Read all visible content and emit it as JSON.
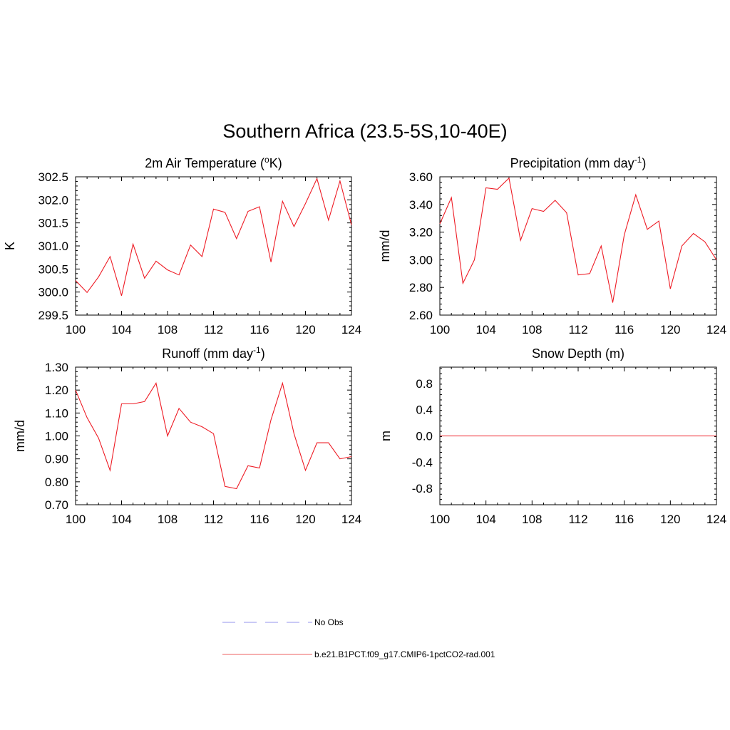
{
  "figure_title": "Southern Africa (23.5-5S,10-40E)",
  "chart_data": [
    {
      "type": "line",
      "title_main": "2m Air Temperature (",
      "title_sup_pre": "o",
      "title_after": "K)",
      "ylabel": "K",
      "xlim": [
        100,
        124
      ],
      "ylim": [
        299.5,
        302.5
      ],
      "x_ticks": [
        100,
        104,
        108,
        112,
        116,
        120,
        124
      ],
      "y_ticks": [
        "299.5",
        "300.0",
        "300.5",
        "301.0",
        "301.5",
        "302.0",
        "302.5"
      ],
      "y_tick_values": [
        299.5,
        300.0,
        300.5,
        301.0,
        301.5,
        302.0,
        302.5
      ],
      "x": [
        100,
        101,
        102,
        103,
        104,
        105,
        106,
        107,
        108,
        109,
        110,
        111,
        112,
        113,
        114,
        115,
        116,
        117,
        118,
        119,
        120,
        121,
        122,
        123,
        124
      ],
      "series": [
        {
          "color": "#ee1c25",
          "values": [
            300.25,
            299.99,
            300.33,
            300.77,
            299.92,
            301.04,
            300.3,
            300.67,
            300.48,
            300.37,
            301.02,
            300.77,
            301.8,
            301.73,
            301.16,
            301.75,
            301.85,
            300.65,
            301.97,
            301.42,
            301.92,
            302.46,
            301.56,
            302.41,
            301.46
          ]
        }
      ]
    },
    {
      "type": "line",
      "title_main": "Precipitation (mm day",
      "title_sup_post": "-1",
      "title_after": ")",
      "ylabel": "mm/d",
      "xlim": [
        100,
        124
      ],
      "ylim": [
        2.6,
        3.6
      ],
      "x_ticks": [
        100,
        104,
        108,
        112,
        116,
        120,
        124
      ],
      "y_ticks": [
        "2.60",
        "2.80",
        "3.00",
        "3.20",
        "3.40",
        "3.60"
      ],
      "y_tick_values": [
        2.6,
        2.8,
        3.0,
        3.2,
        3.4,
        3.6
      ],
      "x": [
        100,
        101,
        102,
        103,
        104,
        105,
        106,
        107,
        108,
        109,
        110,
        111,
        112,
        113,
        114,
        115,
        116,
        117,
        118,
        119,
        120,
        121,
        122,
        123,
        124
      ],
      "series": [
        {
          "color": "#ee1c25",
          "values": [
            3.26,
            3.45,
            2.83,
            3.0,
            3.52,
            3.51,
            3.59,
            3.14,
            3.37,
            3.35,
            3.43,
            3.34,
            2.89,
            2.9,
            3.1,
            2.69,
            3.18,
            3.47,
            3.22,
            3.28,
            2.79,
            3.1,
            3.19,
            3.13,
            3.0
          ]
        }
      ]
    },
    {
      "type": "line",
      "title_main": "Runoff (mm day",
      "title_sup_post": "-1",
      "title_after": ")",
      "ylabel": "mm/d",
      "xlim": [
        100,
        124
      ],
      "ylim": [
        0.7,
        1.3
      ],
      "x_ticks": [
        100,
        104,
        108,
        112,
        116,
        120,
        124
      ],
      "y_ticks": [
        "0.70",
        "0.80",
        "0.90",
        "1.00",
        "1.10",
        "1.20",
        "1.30"
      ],
      "y_tick_values": [
        0.7,
        0.8,
        0.9,
        1.0,
        1.1,
        1.2,
        1.3
      ],
      "x": [
        100,
        101,
        102,
        103,
        104,
        105,
        106,
        107,
        108,
        109,
        110,
        111,
        112,
        113,
        114,
        115,
        116,
        117,
        118,
        119,
        120,
        121,
        122,
        123,
        124
      ],
      "series": [
        {
          "color": "#ee1c25",
          "values": [
            1.2,
            1.08,
            0.99,
            0.85,
            1.14,
            1.14,
            1.15,
            1.23,
            1.0,
            1.12,
            1.06,
            1.04,
            1.01,
            0.78,
            0.77,
            0.87,
            0.86,
            1.07,
            1.23,
            1.01,
            0.85,
            0.97,
            0.97,
            0.9,
            0.91
          ]
        }
      ]
    },
    {
      "type": "line",
      "title_main": "Snow Depth (m)",
      "ylabel": "m",
      "xlim": [
        100,
        124
      ],
      "ylim": [
        -1.05,
        1.05
      ],
      "x_ticks": [
        100,
        104,
        108,
        112,
        116,
        120,
        124
      ],
      "y_ticks": [
        "-0.8",
        "-0.4",
        "0.0",
        "0.4",
        "0.8"
      ],
      "y_tick_values": [
        -0.8,
        -0.4,
        0.0,
        0.4,
        0.8
      ],
      "x": [
        100,
        101,
        102,
        103,
        104,
        105,
        106,
        107,
        108,
        109,
        110,
        111,
        112,
        113,
        114,
        115,
        116,
        117,
        118,
        119,
        120,
        121,
        122,
        123,
        124
      ],
      "series": [
        {
          "color": "#ee1c25",
          "values": [
            0,
            0,
            0,
            0,
            0,
            0,
            0,
            0,
            0,
            0,
            0,
            0,
            0,
            0,
            0,
            0,
            0,
            0,
            0,
            0,
            0,
            0,
            0,
            0,
            0
          ]
        }
      ]
    }
  ],
  "legend": {
    "placement": "bottom-center",
    "entries": [
      {
        "label": "No Obs",
        "color": "#aaaaf0",
        "style": "dashed"
      },
      {
        "label": "b.e21.B1PCT.f09_g17.CMIP6-1pctCO2-rad.001",
        "color": "#f08080",
        "style": "solid"
      }
    ]
  }
}
